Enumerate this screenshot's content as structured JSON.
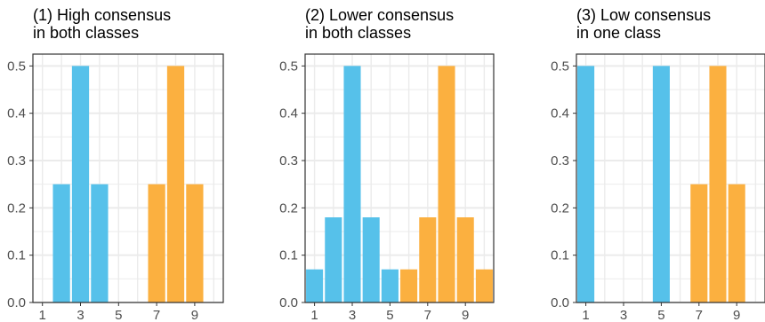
{
  "colors": {
    "class_a": "#56c1ea",
    "class_b": "#fbb040",
    "grid": "#ebebeb",
    "panel_border": "#333333"
  },
  "chart_data": [
    {
      "type": "bar",
      "title_lines": [
        "(1) High consensus",
        "in both classes"
      ],
      "xlim": [
        0.5,
        10.5
      ],
      "ylim": [
        0,
        0.525
      ],
      "xticks": [
        1,
        3,
        5,
        7,
        9
      ],
      "yticks": [
        0.0,
        0.1,
        0.2,
        0.3,
        0.4,
        0.5
      ],
      "ytick_labels": [
        "0.0",
        "0.1",
        "0.2",
        "0.3",
        "0.4",
        "0.5"
      ],
      "grid": true,
      "series": [
        {
          "color": "class_a",
          "x": [
            2,
            3,
            4
          ],
          "values": [
            0.25,
            0.5,
            0.25
          ]
        },
        {
          "color": "class_b",
          "x": [
            7,
            8,
            9
          ],
          "values": [
            0.25,
            0.5,
            0.25
          ]
        }
      ]
    },
    {
      "type": "bar",
      "title_lines": [
        "(2) Lower consensus",
        "in both classes"
      ],
      "xlim": [
        0.5,
        10.5
      ],
      "ylim": [
        0,
        0.525
      ],
      "xticks": [
        1,
        3,
        5,
        7,
        9
      ],
      "yticks": [
        0.0,
        0.1,
        0.2,
        0.3,
        0.4,
        0.5
      ],
      "ytick_labels": [
        "0.0",
        "0.1",
        "0.2",
        "0.3",
        "0.4",
        "0.5"
      ],
      "grid": true,
      "series": [
        {
          "color": "class_a",
          "x": [
            1,
            2,
            3,
            4,
            5
          ],
          "values": [
            0.07,
            0.18,
            0.5,
            0.18,
            0.07
          ]
        },
        {
          "color": "class_b",
          "x": [
            6,
            7,
            8,
            9,
            10
          ],
          "values": [
            0.07,
            0.18,
            0.5,
            0.18,
            0.07
          ]
        }
      ]
    },
    {
      "type": "bar",
      "title_lines": [
        "(3) Low consensus",
        "in one class"
      ],
      "xlim": [
        0.5,
        10.5
      ],
      "ylim": [
        0,
        0.525
      ],
      "xticks": [
        1,
        3,
        5,
        7,
        9
      ],
      "yticks": [
        0.0,
        0.1,
        0.2,
        0.3,
        0.4,
        0.5
      ],
      "ytick_labels": [
        "0.0",
        "0.1",
        "0.2",
        "0.3",
        "0.4",
        "0.5"
      ],
      "grid": true,
      "series": [
        {
          "color": "class_a",
          "x": [
            1,
            5
          ],
          "values": [
            0.5,
            0.5
          ]
        },
        {
          "color": "class_b",
          "x": [
            7,
            8,
            9
          ],
          "values": [
            0.25,
            0.5,
            0.25
          ]
        }
      ]
    }
  ]
}
